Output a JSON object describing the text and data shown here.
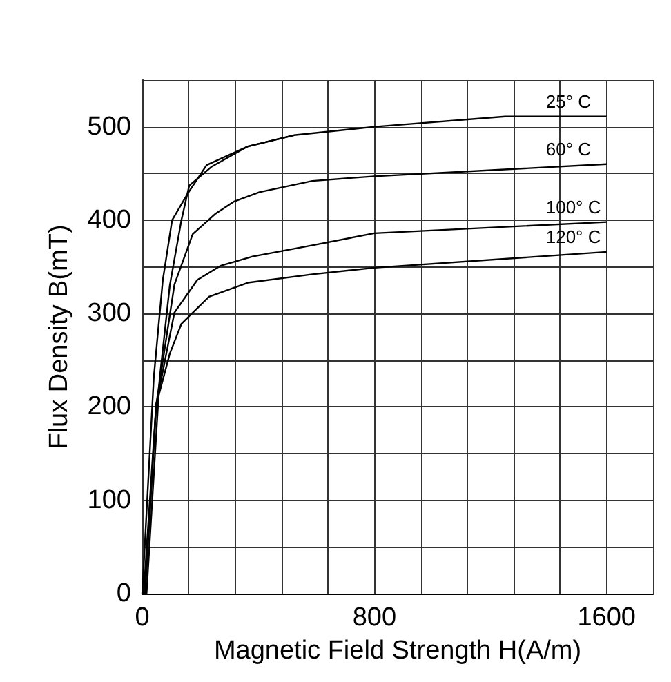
{
  "chart_data": {
    "type": "line",
    "xlabel": "Magnetic Field Strength H(A/m)",
    "ylabel": "Flux Density B(mT)",
    "xlim": [
      0,
      1760
    ],
    "ylim": [
      0,
      550
    ],
    "xticks": [
      0,
      {
        "value": 160,
        "label": null
      },
      {
        "value": 320,
        "label": null
      },
      {
        "value": 480,
        "label": null
      },
      {
        "value": 640,
        "label": null
      },
      800,
      {
        "value": 960,
        "label": null
      },
      {
        "value": 1120,
        "label": null
      },
      {
        "value": 1280,
        "label": null
      },
      {
        "value": 1440,
        "label": null
      },
      1600
    ],
    "yticks": [
      0,
      {
        "value": 50,
        "label": null
      },
      100,
      {
        "value": 150,
        "label": null
      },
      200,
      {
        "value": 250,
        "label": null
      },
      300,
      {
        "value": 350,
        "label": null
      },
      400,
      {
        "value": 450,
        "label": null
      },
      500
    ],
    "grid": true,
    "legend": false,
    "marker": "none",
    "line_style": "solid",
    "series": [
      {
        "name": "25° C",
        "color": "#000000",
        "x": [
          0,
          40,
          71,
          103,
          158,
          222,
          364,
          523,
          800,
          1250,
          1600
        ],
        "values": [
          0,
          232,
          336,
          400,
          429,
          459,
          479,
          491,
          500,
          511,
          511
        ]
      },
      {
        "color": "#000000",
        "x": [
          15,
          60,
          95,
          135,
          162,
          238,
          364,
          523
        ],
        "values": [
          0,
          230,
          330,
          400,
          437,
          457,
          479,
          491
        ]
      },
      {
        "name": "60° C",
        "color": "#000000",
        "x": [
          5,
          48,
          111,
          174,
          253,
          317,
          404,
          586,
          800,
          1600
        ],
        "values": [
          0,
          202,
          331,
          385,
          407,
          420,
          430,
          442,
          447,
          460
        ]
      },
      {
        "name": "100° C",
        "color": "#000000",
        "x": [
          10,
          48,
          111,
          190,
          269,
          380,
          586,
          800,
          1600
        ],
        "values": [
          0,
          202,
          301,
          336,
          351,
          361,
          373,
          386,
          398
        ]
      },
      {
        "name": "120° C",
        "color": "#000000",
        "x": [
          10,
          48,
          95,
          135,
          230,
          364,
          586,
          800,
          1600
        ],
        "values": [
          0,
          202,
          257,
          289,
          318,
          333,
          342,
          349,
          366
        ]
      }
    ]
  }
}
